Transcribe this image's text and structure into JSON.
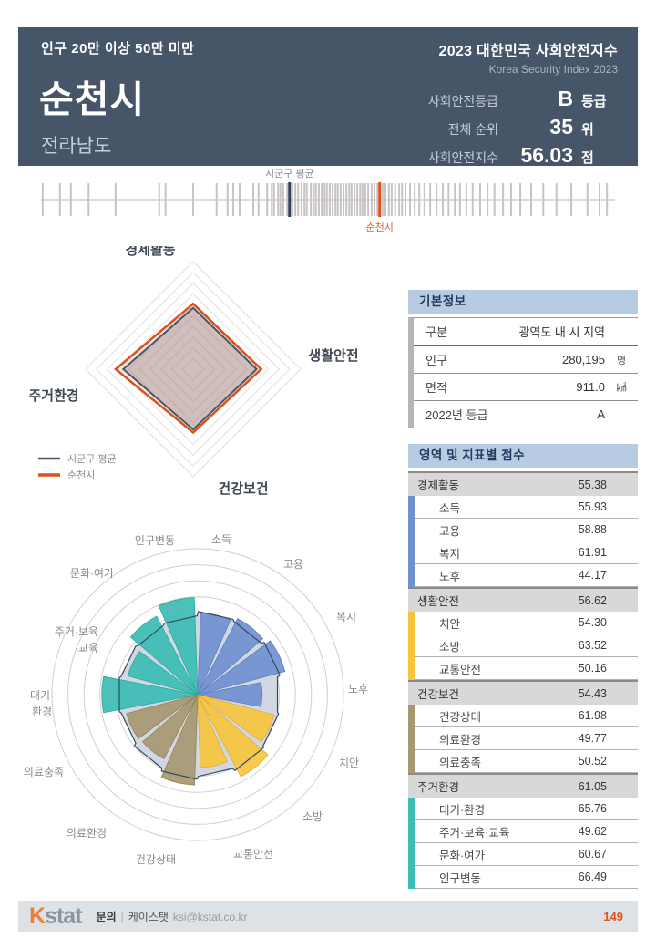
{
  "header": {
    "population_band": "인구 20만 이상 50만 미만",
    "city": "순천시",
    "province": "전라남도",
    "report_title": "2023 대한민국 사회안전지수",
    "report_subtitle": "Korea Security Index 2023",
    "metrics": [
      {
        "label": "사회안전등급",
        "value": "B",
        "unit": "등급"
      },
      {
        "label": "전체 순위",
        "value": "35",
        "unit": "위"
      },
      {
        "label": "사회안전지수",
        "value": "56.03",
        "unit": "점"
      }
    ]
  },
  "basic_info": {
    "title": "기본정보",
    "rows": [
      {
        "label": "구분",
        "value": "광역도 내 시 지역",
        "unit": ""
      },
      {
        "label": "인구",
        "value": "280,195",
        "unit": "명"
      },
      {
        "label": "면적",
        "value": "911.0",
        "unit": "㎢"
      },
      {
        "label": "2022년 등급",
        "value": "A",
        "unit": ""
      }
    ]
  },
  "scores": {
    "title": "영역 및 지표별 점수",
    "groups": [
      {
        "name": "경제활동",
        "score": "55.38",
        "color": "#7090d0",
        "items": [
          {
            "name": "소득",
            "score": "55.93"
          },
          {
            "name": "고용",
            "score": "58.88"
          },
          {
            "name": "복지",
            "score": "61.91"
          },
          {
            "name": "노후",
            "score": "44.17"
          }
        ]
      },
      {
        "name": "생활안전",
        "score": "56.62",
        "color": "#f6c53e",
        "items": [
          {
            "name": "치안",
            "score": "54.30"
          },
          {
            "name": "소방",
            "score": "63.52"
          },
          {
            "name": "교통안전",
            "score": "50.16"
          }
        ]
      },
      {
        "name": "건강보건",
        "score": "54.43",
        "color": "#a79772",
        "items": [
          {
            "name": "건강상태",
            "score": "61.98"
          },
          {
            "name": "의료환경",
            "score": "49.77"
          },
          {
            "name": "의료충족",
            "score": "50.52"
          }
        ]
      },
      {
        "name": "주거환경",
        "score": "61.05",
        "color": "#3cbcb4",
        "items": [
          {
            "name": "대기·환경",
            "score": "65.76"
          },
          {
            "name": "주거·보육·교육",
            "score": "49.62"
          },
          {
            "name": "문화·여가",
            "score": "60.67"
          },
          {
            "name": "인구변동",
            "score": "66.49"
          }
        ]
      }
    ]
  },
  "footer": {
    "logo_k": "K",
    "logo_stat": "stat",
    "contact_label": "문의",
    "divider": "|",
    "company": "케이스탯",
    "email": "ksi@kstat.co.kr",
    "page_number": "149"
  },
  "colors": {
    "header_bg": "#475569",
    "panel_header_bg": "#b7cbe2",
    "category_row_bg": "#d8d8d8",
    "accent_orange": "#d9511c",
    "navy_line": "#46566b",
    "footer_bg": "#dde2e7",
    "economy_blue": "#7090d0",
    "safety_yellow": "#f6c53e",
    "health_tan": "#a79772",
    "housing_teal": "#3cbcb4",
    "avg_blob_fill": "#cfd6e2"
  },
  "chart_data": [
    {
      "type": "scatter",
      "subtype": "strip-distribution",
      "description": "distribution of all 시군구 scores as vertical ticks",
      "axis_range_pct": [
        0,
        100
      ],
      "tick_positions_pct": [
        0.3,
        3.3,
        5.2,
        8.3,
        13.0,
        20.6,
        21.7,
        26.5,
        30.6,
        32.5,
        33.5,
        34.6,
        37.0,
        37.9,
        39.4,
        40.2,
        40.6,
        41.3,
        41.7,
        42.2,
        42.9,
        43.8,
        44.3,
        44.8,
        45.4,
        45.9,
        46.3,
        47.0,
        47.5,
        47.9,
        48.4,
        48.9,
        49.4,
        49.8,
        50.3,
        50.8,
        51.3,
        51.7,
        52.2,
        52.7,
        53.2,
        53.7,
        54.1,
        54.6,
        55.1,
        55.6,
        56.0,
        56.5,
        57.0,
        57.6,
        58.1,
        58.6,
        59.5,
        60.0,
        60.6,
        61.1,
        61.7,
        62.4,
        62.9,
        63.5,
        64.3,
        65.1,
        65.9,
        66.8,
        67.8,
        68.9,
        70.0,
        71.0,
        72.1,
        73.0,
        74.1,
        75.2,
        76.5,
        77.8,
        79.0,
        80.5,
        81.9,
        83.5,
        85.4,
        87.5,
        89.8,
        92.4,
        95.2,
        97.3,
        98.6
      ],
      "markers": [
        {
          "label": "시군구 평균",
          "position_pct": 43.3,
          "color": "#2e4058",
          "label_color": "#85878b",
          "label_side": "top"
        },
        {
          "label": "순천시",
          "position_pct": 59.0,
          "color": "#d9511c",
          "label_color": "#d9632f",
          "label_side": "bottom"
        }
      ]
    },
    {
      "type": "radar",
      "categories": [
        "경제활동",
        "생활안전",
        "건강보건",
        "주거환경"
      ],
      "series": [
        {
          "name": "시군구 평균",
          "values": [
            53.5,
            54.5,
            53.0,
            57.5
          ],
          "color": "#46566b",
          "estimated": true
        },
        {
          "name": "순천시",
          "values": [
            55.38,
            56.62,
            54.43,
            61.05
          ],
          "color": "#d9511c"
        }
      ],
      "range": [
        25,
        75
      ],
      "rings": 10,
      "legend_position": "bottom-left"
    },
    {
      "type": "polar_bar",
      "categories": [
        "소득",
        "고용",
        "복지",
        "노후",
        "치안",
        "소방",
        "교통안전",
        "건강상태",
        "의료환경",
        "의료충족",
        "대기·환경",
        "주거·보육·교육",
        "문화·여가",
        "인구변동"
      ],
      "label_lines": [
        "소득",
        "고용",
        "복지",
        "노후",
        "치안",
        "소방",
        "교통안전",
        "건강상태",
        "의료환경",
        "의료충족",
        "대기·\n환경",
        "주거·보육\n·교육",
        "문화·여가",
        "인구변동"
      ],
      "series": [
        {
          "name": "순천시",
          "values": [
            55.93,
            58.88,
            61.91,
            44.17,
            54.3,
            63.52,
            50.16,
            61.98,
            49.77,
            50.52,
            65.76,
            49.62,
            60.67,
            66.49
          ]
        },
        {
          "name": "시군구 평균",
          "values": [
            57,
            56,
            58,
            56,
            57,
            58,
            56,
            58,
            56,
            54,
            55,
            54,
            53,
            54
          ],
          "estimated": true
        }
      ],
      "group_colors": [
        {
          "group": "경제활동",
          "color": "#7090d0",
          "stroke": "#5d7ec0",
          "count": 4
        },
        {
          "group": "생활안전",
          "color": "#f6c53e",
          "stroke": "#e2ae2c",
          "count": 3
        },
        {
          "group": "건강보건",
          "color": "#a79772",
          "stroke": "#93824f",
          "count": 3
        },
        {
          "group": "주거환경",
          "color": "#3cbcb4",
          "stroke": "#2aa89c",
          "count": 4
        }
      ],
      "range": [
        0,
        100
      ],
      "rings": 7
    }
  ]
}
